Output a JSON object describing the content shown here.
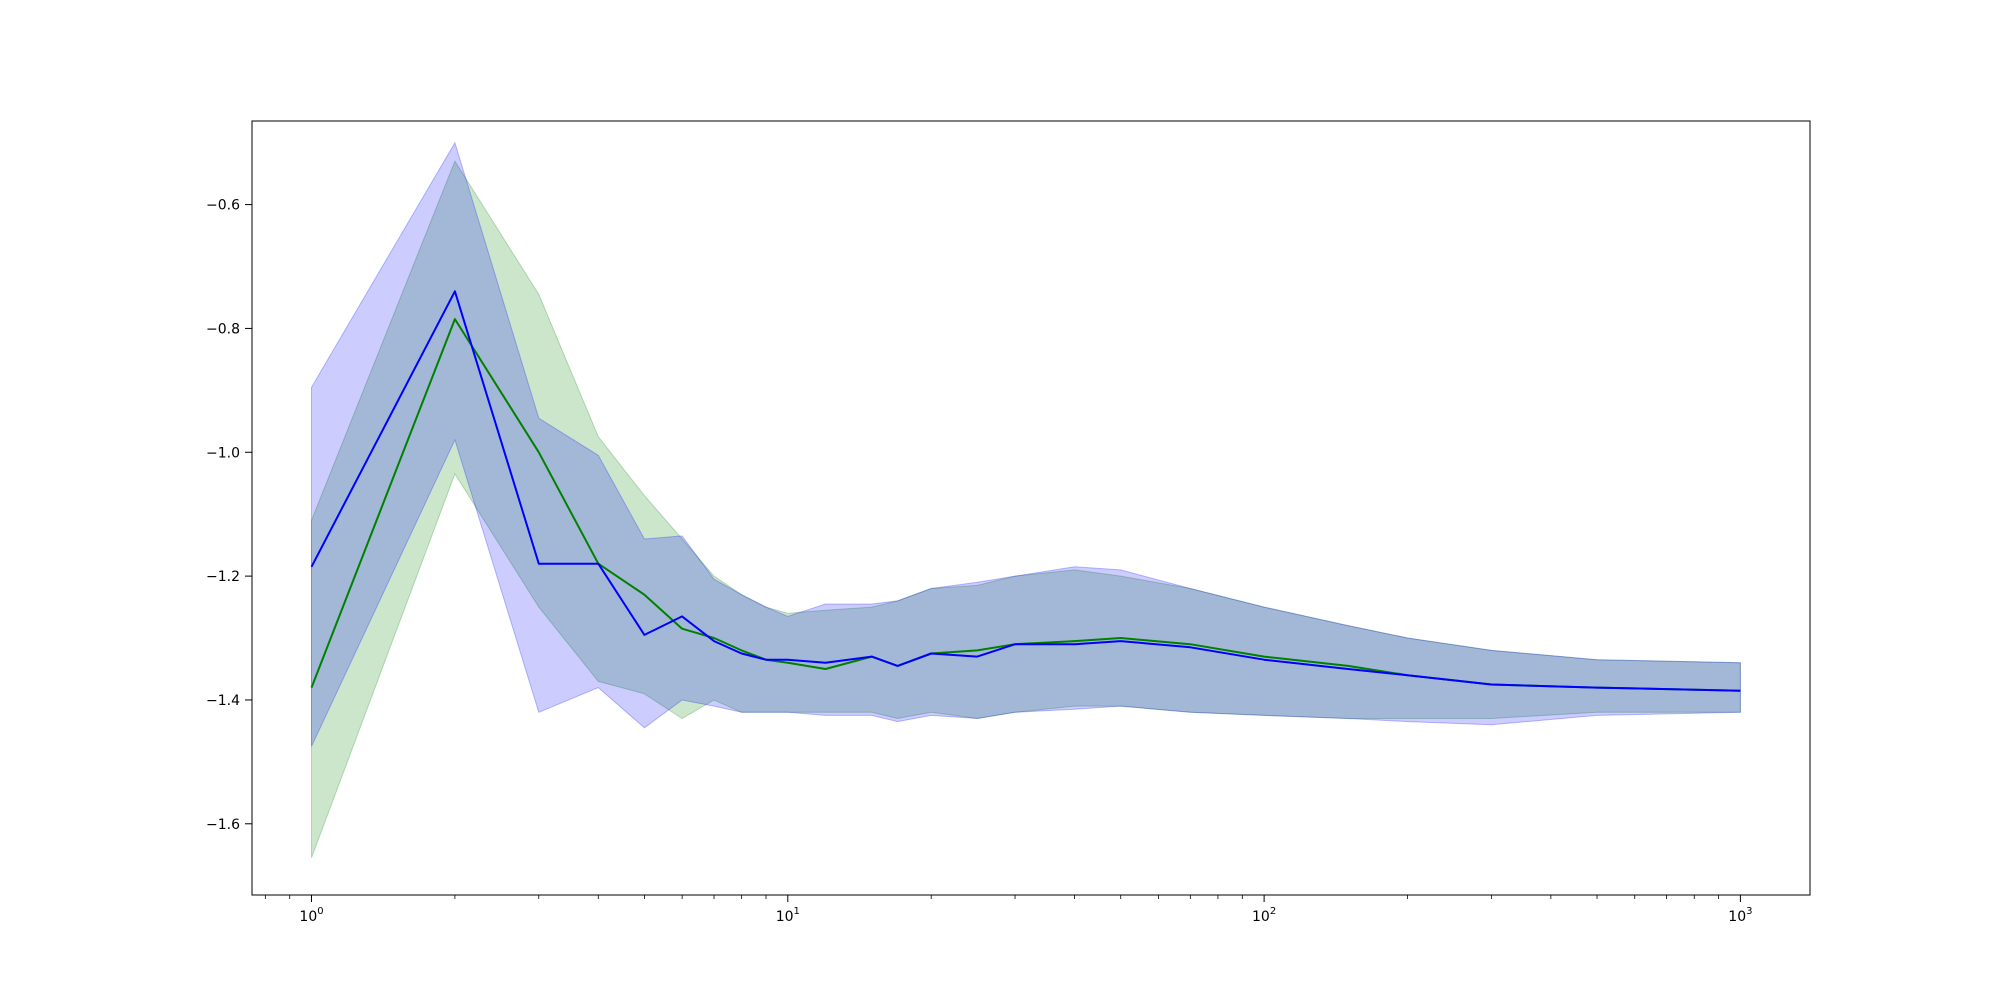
{
  "chart_data": {
    "type": "line",
    "title": "",
    "xlabel": "",
    "ylabel": "",
    "xscale": "log",
    "xlim": [
      0.75,
      1400
    ],
    "ylim": [
      -1.715,
      -0.465
    ],
    "grid": false,
    "legend": "none",
    "x_ticks": [
      {
        "value": 1,
        "base": "10",
        "exp": "0"
      },
      {
        "value": 10,
        "base": "10",
        "exp": "1"
      },
      {
        "value": 100,
        "base": "10",
        "exp": "2"
      },
      {
        "value": 1000,
        "base": "10",
        "exp": "3"
      }
    ],
    "y_ticks": [
      {
        "value": -0.6,
        "label": "−0.6"
      },
      {
        "value": -0.8,
        "label": "−0.8"
      },
      {
        "value": -1.0,
        "label": "−1.0"
      },
      {
        "value": -1.2,
        "label": "−1.2"
      },
      {
        "value": -1.4,
        "label": "−1.4"
      },
      {
        "value": -1.6,
        "label": "−1.6"
      }
    ],
    "series": [
      {
        "color": "#008000",
        "band_color": "#008000",
        "x": [
          1,
          2,
          3,
          4,
          5,
          6,
          7,
          8,
          9,
          10,
          12,
          15,
          17,
          20,
          25,
          30,
          40,
          50,
          70,
          100,
          150,
          200,
          300,
          500,
          1000
        ],
        "y": [
          -1.38,
          -0.785,
          -1.0,
          -1.18,
          -1.23,
          -1.285,
          -1.3,
          -1.32,
          -1.335,
          -1.34,
          -1.35,
          -1.33,
          -1.345,
          -1.325,
          -1.32,
          -1.31,
          -1.305,
          -1.3,
          -1.31,
          -1.33,
          -1.345,
          -1.36,
          -1.375,
          -1.38,
          -1.385
        ],
        "lower": [
          -1.655,
          -1.035,
          -1.25,
          -1.37,
          -1.39,
          -1.43,
          -1.4,
          -1.42,
          -1.42,
          -1.42,
          -1.42,
          -1.42,
          -1.43,
          -1.42,
          -1.43,
          -1.42,
          -1.41,
          -1.41,
          -1.42,
          -1.425,
          -1.43,
          -1.43,
          -1.43,
          -1.42,
          -1.42
        ],
        "upper": [
          -1.11,
          -0.53,
          -0.745,
          -0.975,
          -1.07,
          -1.14,
          -1.2,
          -1.23,
          -1.25,
          -1.26,
          -1.255,
          -1.25,
          -1.24,
          -1.22,
          -1.215,
          -1.2,
          -1.19,
          -1.2,
          -1.22,
          -1.25,
          -1.28,
          -1.3,
          -1.32,
          -1.335,
          -1.34
        ]
      },
      {
        "color": "#0000ff",
        "band_color": "#0000ff",
        "x": [
          1,
          2,
          3,
          4,
          5,
          6,
          7,
          8,
          9,
          10,
          12,
          15,
          17,
          20,
          25,
          30,
          40,
          50,
          70,
          100,
          150,
          200,
          300,
          500,
          1000
        ],
        "y": [
          -1.185,
          -0.74,
          -1.18,
          -1.18,
          -1.295,
          -1.265,
          -1.305,
          -1.325,
          -1.335,
          -1.335,
          -1.34,
          -1.33,
          -1.345,
          -1.325,
          -1.33,
          -1.31,
          -1.31,
          -1.305,
          -1.315,
          -1.335,
          -1.35,
          -1.36,
          -1.375,
          -1.38,
          -1.385
        ],
        "lower": [
          -1.475,
          -0.98,
          -1.42,
          -1.38,
          -1.445,
          -1.4,
          -1.41,
          -1.42,
          -1.42,
          -1.42,
          -1.425,
          -1.425,
          -1.435,
          -1.425,
          -1.43,
          -1.42,
          -1.415,
          -1.41,
          -1.42,
          -1.425,
          -1.43,
          -1.435,
          -1.44,
          -1.425,
          -1.42
        ],
        "upper": [
          -0.895,
          -0.5,
          -0.945,
          -1.005,
          -1.14,
          -1.135,
          -1.205,
          -1.23,
          -1.25,
          -1.265,
          -1.245,
          -1.245,
          -1.24,
          -1.22,
          -1.21,
          -1.2,
          -1.185,
          -1.19,
          -1.22,
          -1.25,
          -1.28,
          -1.3,
          -1.32,
          -1.335,
          -1.34
        ]
      }
    ]
  }
}
